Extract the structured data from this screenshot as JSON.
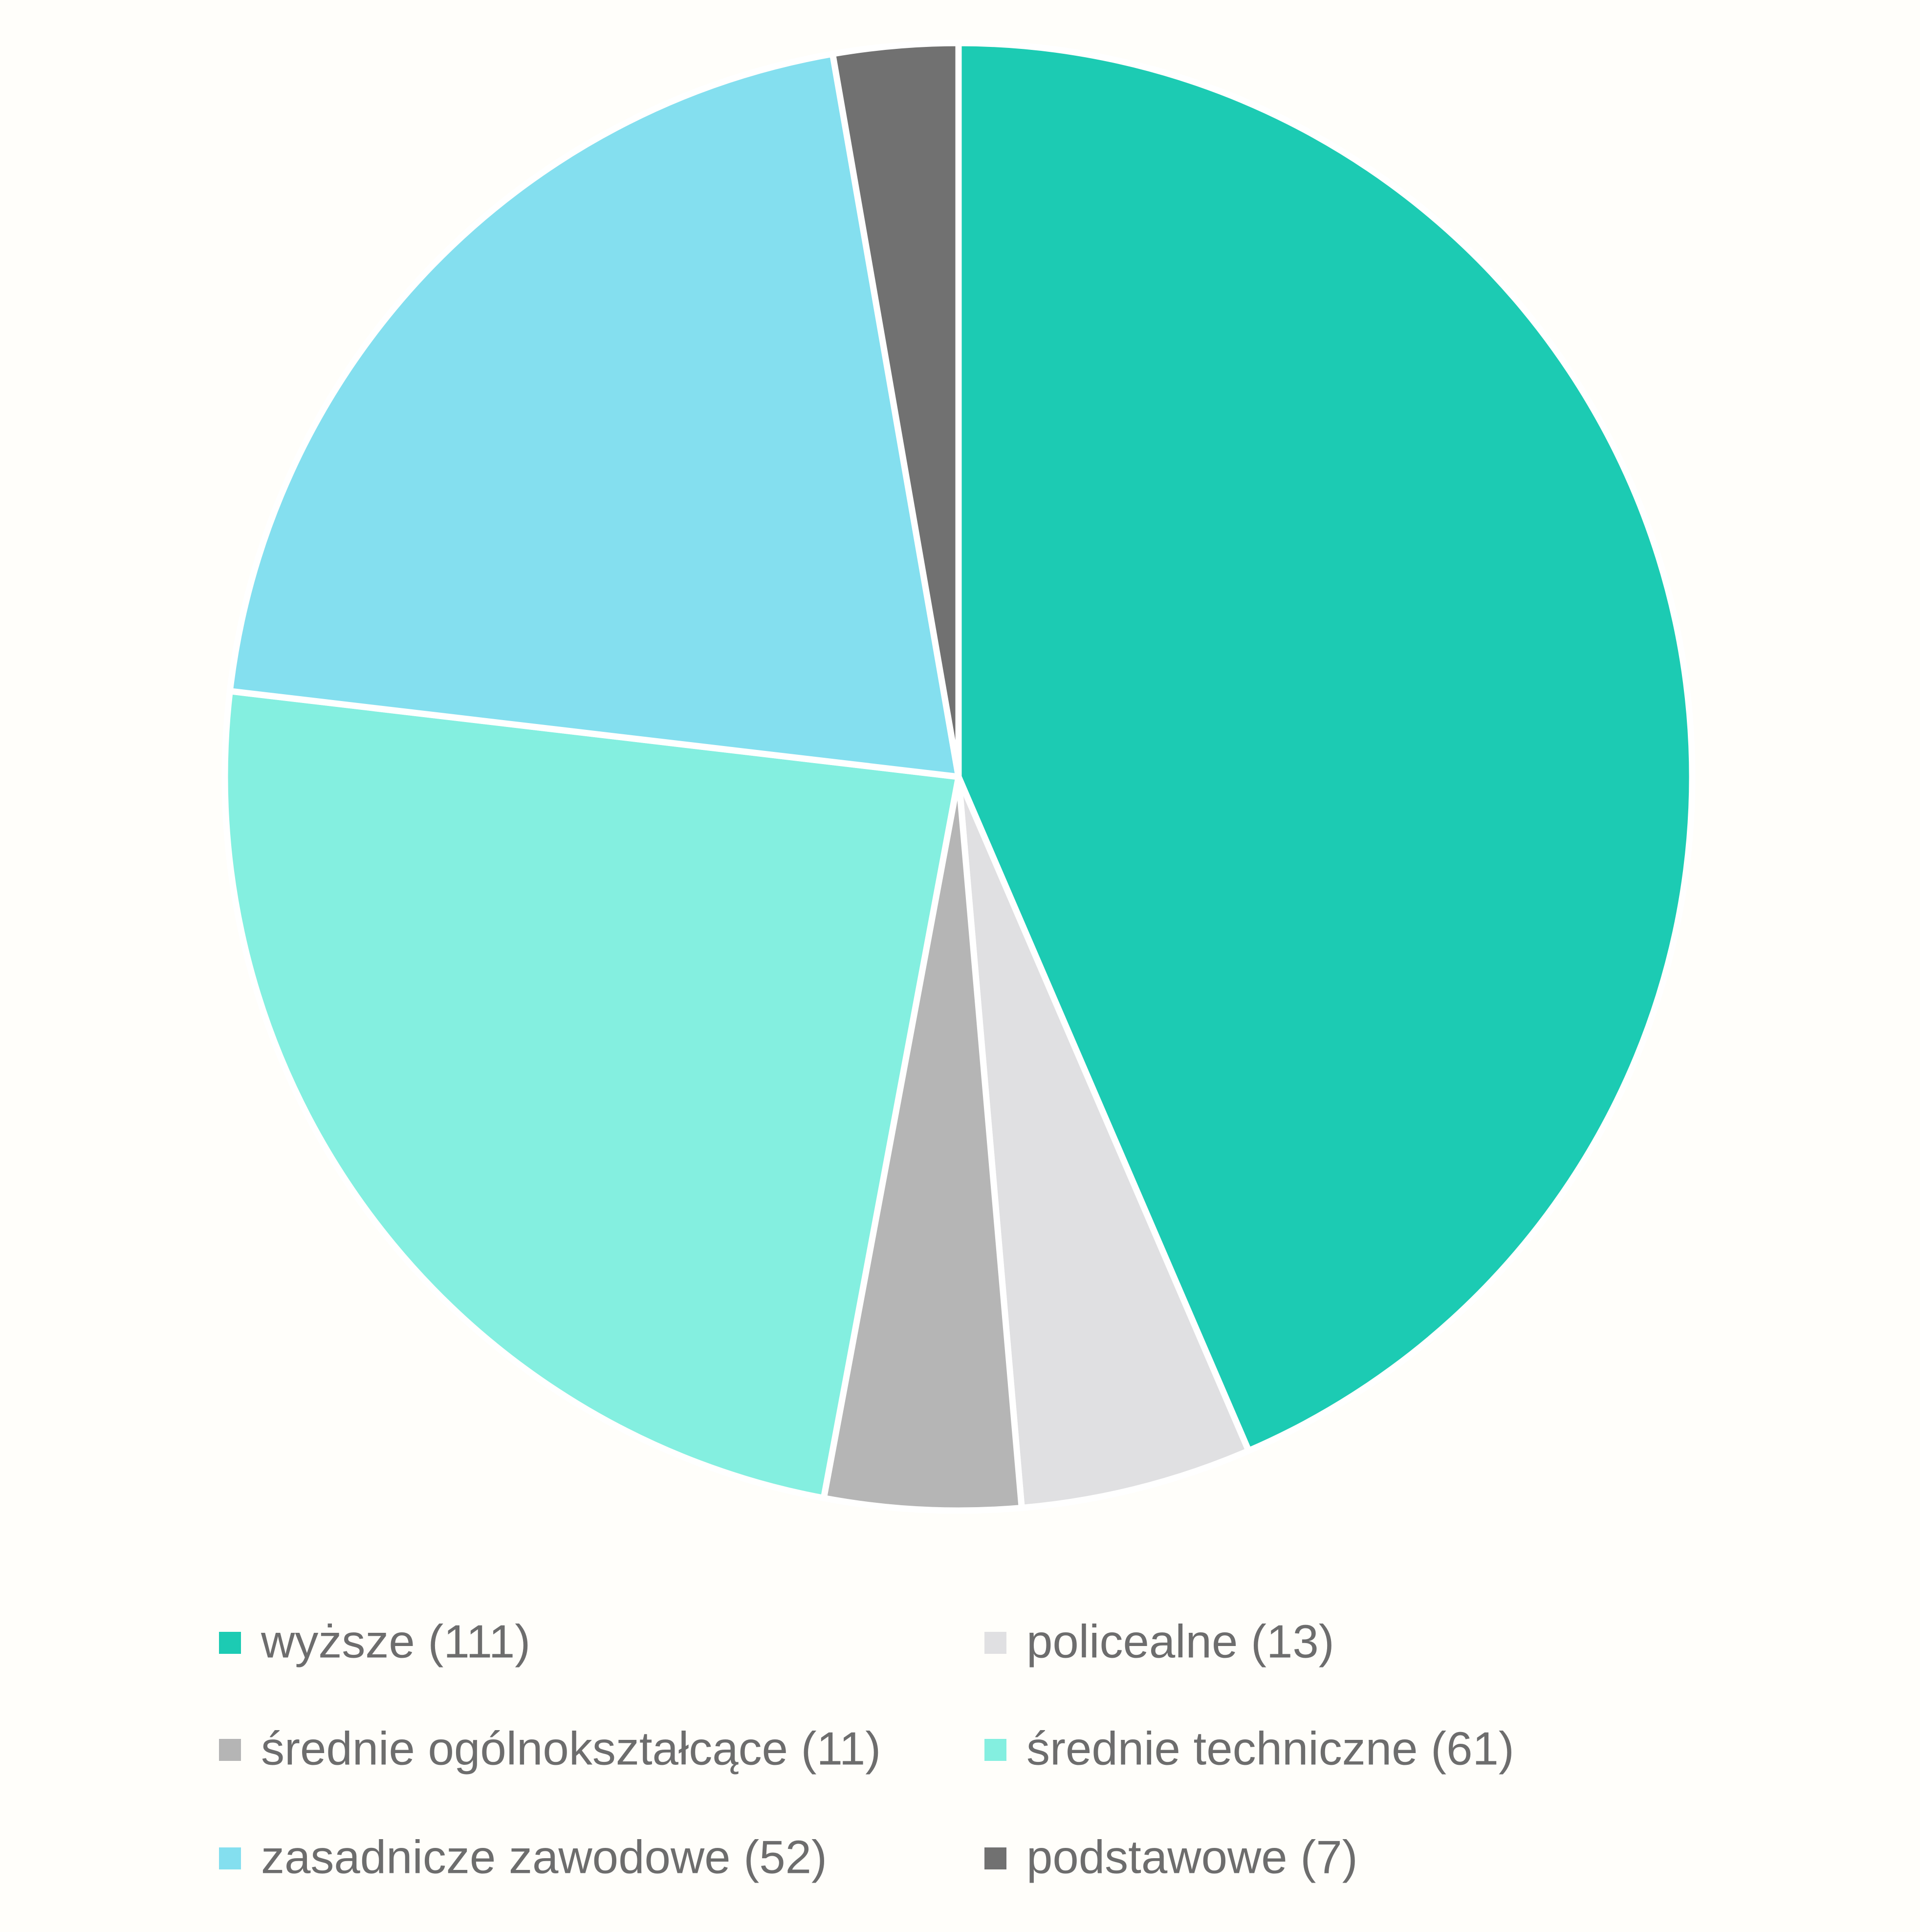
{
  "chart_data": {
    "type": "pie",
    "categories": [
      "wyższe (111)",
      "policealne (13)",
      "średnie ogólnokształcące (11)",
      "średnie techniczne (61)",
      "zasadnicze zawodowe (52)",
      "podstawowe (7)"
    ],
    "values": [
      111,
      13,
      11,
      61,
      52,
      7
    ],
    "colors": [
      "#1ccbb3",
      "#e0e0e2",
      "#b5b5b5",
      "#84efe0",
      "#84dfef",
      "#717171"
    ],
    "legend": "bottom"
  }
}
